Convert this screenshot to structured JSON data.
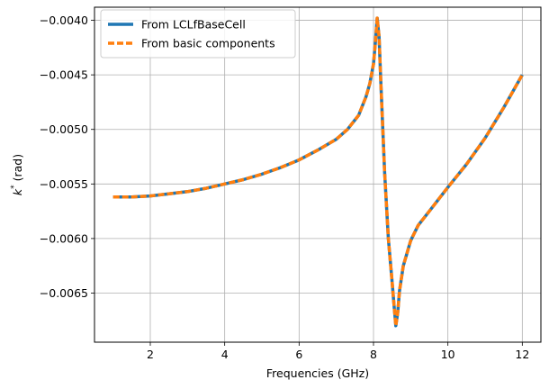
{
  "chart_data": {
    "type": "line",
    "xlabel": "Frequencies (GHz)",
    "ylabel": "k* (rad)",
    "ylabel_base": "k",
    "ylabel_sup": "*",
    "ylabel_unit": "(rad)",
    "xlim": [
      0.5,
      12.5
    ],
    "ylim": [
      -0.00695,
      -0.00388
    ],
    "xticks": [
      2,
      4,
      6,
      8,
      10,
      12
    ],
    "xtick_labels": [
      "2",
      "4",
      "6",
      "8",
      "10",
      "12"
    ],
    "yticks": [
      -0.004,
      -0.0045,
      -0.005,
      -0.0055,
      -0.006,
      -0.0065
    ],
    "ytick_labels": [
      "−0.0040",
      "−0.0045",
      "−0.0050",
      "−0.0055",
      "−0.0060",
      "−0.0065"
    ],
    "grid": true,
    "legend_position": "top-left",
    "x": [
      1.0,
      1.5,
      2.0,
      2.5,
      3.0,
      3.5,
      4.0,
      4.5,
      5.0,
      5.5,
      6.0,
      6.5,
      7.0,
      7.3,
      7.6,
      7.8,
      7.9,
      8.0,
      8.05,
      8.1,
      8.15,
      8.2,
      8.3,
      8.4,
      8.5,
      8.55,
      8.6,
      8.65,
      8.7,
      8.8,
      9.0,
      9.2,
      9.5,
      10.0,
      10.5,
      11.0,
      11.5,
      12.0
    ],
    "series": [
      {
        "name": "From LCLfBaseCell",
        "color": "#1f77b4",
        "style": "solid",
        "values": [
          -0.00562,
          -0.00562,
          -0.00561,
          -0.00559,
          -0.00557,
          -0.00554,
          -0.0055,
          -0.00546,
          -0.00541,
          -0.00535,
          -0.00528,
          -0.00519,
          -0.00509,
          -0.005,
          -0.00487,
          -0.0047,
          -0.00458,
          -0.0044,
          -0.0042,
          -0.00398,
          -0.00415,
          -0.0046,
          -0.0054,
          -0.006,
          -0.0064,
          -0.0066,
          -0.0068,
          -0.00668,
          -0.00648,
          -0.00625,
          -0.00602,
          -0.00588,
          -0.00575,
          -0.00553,
          -0.00532,
          -0.00508,
          -0.0048,
          -0.0045
        ]
      },
      {
        "name": "From basic components",
        "color": "#ff7f0e",
        "style": "dashed",
        "values": [
          -0.00562,
          -0.00562,
          -0.00561,
          -0.00559,
          -0.00557,
          -0.00554,
          -0.0055,
          -0.00546,
          -0.00541,
          -0.00535,
          -0.00528,
          -0.00519,
          -0.00509,
          -0.005,
          -0.00487,
          -0.0047,
          -0.00458,
          -0.0044,
          -0.0042,
          -0.00398,
          -0.00415,
          -0.0046,
          -0.0054,
          -0.006,
          -0.0064,
          -0.0066,
          -0.0068,
          -0.00668,
          -0.00648,
          -0.00625,
          -0.00602,
          -0.00588,
          -0.00575,
          -0.00553,
          -0.00532,
          -0.00508,
          -0.0048,
          -0.0045
        ]
      }
    ]
  }
}
